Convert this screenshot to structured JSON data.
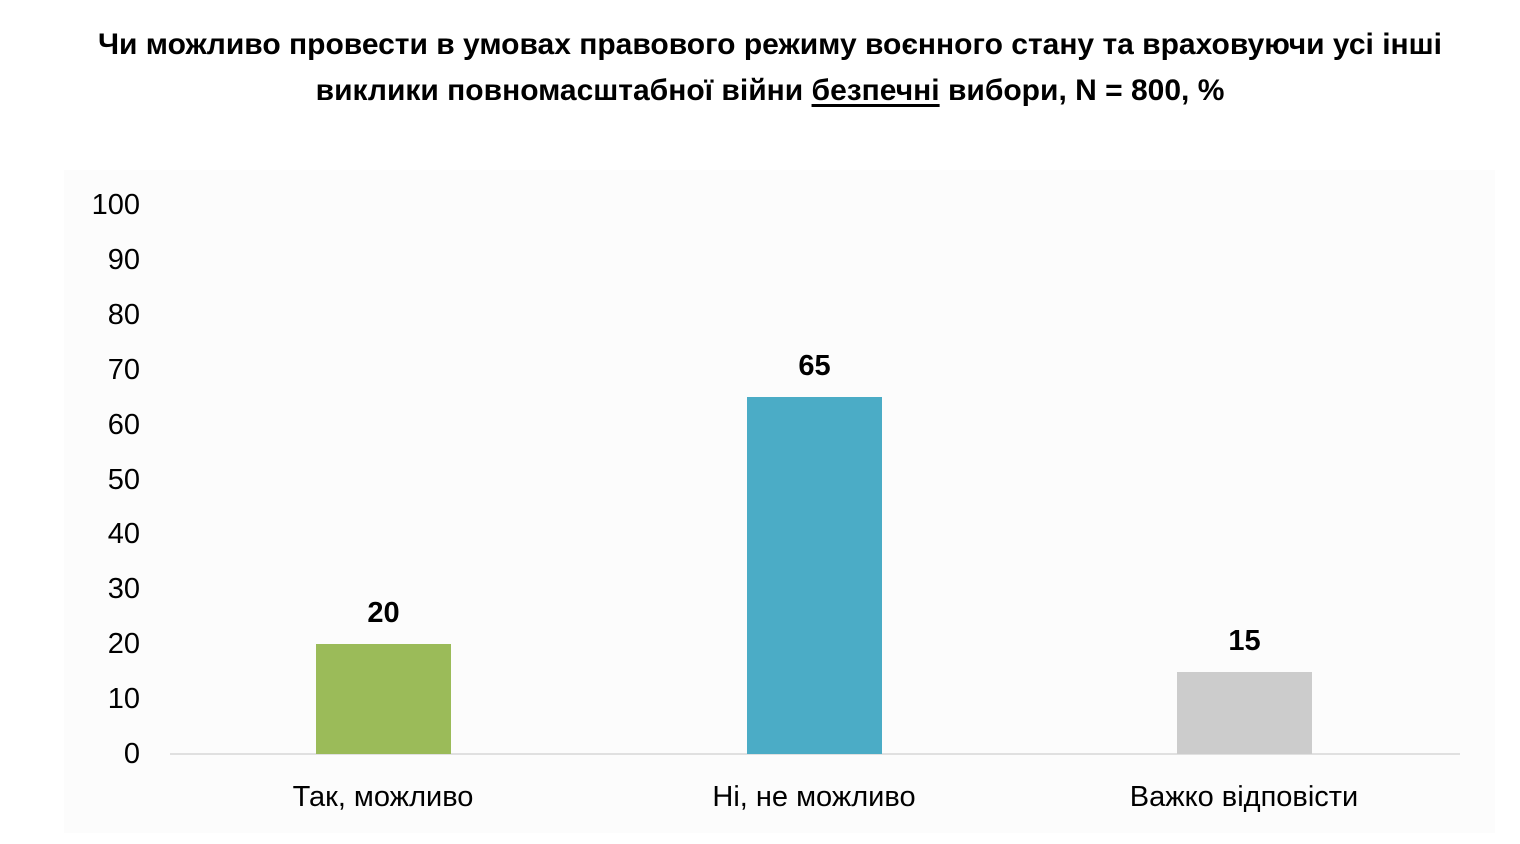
{
  "title": {
    "part1": "Чи можливо провести в умовах правового режиму воєнного стану та враховуючи усі інші виклики повномасштабної війни ",
    "underlined": "безпечні",
    "part2": " вибори, N = 800, %"
  },
  "y_ticks": [
    "100",
    "90",
    "80",
    "70",
    "60",
    "50",
    "40",
    "30",
    "20",
    "10",
    "0"
  ],
  "bars": [
    {
      "label": "Так, можливо",
      "value": 20,
      "value_label": "20",
      "color": "#9bbb59"
    },
    {
      "label": "Ні, не можливо",
      "value": 65,
      "value_label": "65",
      "color": "#4bacc6"
    },
    {
      "label": "Важко відповісти",
      "value": 15,
      "value_label": "15",
      "color": "#cccccc"
    }
  ],
  "chart_data": {
    "type": "bar",
    "title": "Чи можливо провести в умовах правового режиму воєнного стану та враховуючи усі інші виклики повномасштабної війни безпечні вибори, N = 800, %",
    "categories": [
      "Так, можливо",
      "Ні, не можливо",
      "Важко відповісти"
    ],
    "values": [
      20,
      65,
      15
    ],
    "colors": [
      "#9bbb59",
      "#4bacc6",
      "#cccccc"
    ],
    "xlabel": "",
    "ylabel": "",
    "ylim": [
      0,
      100
    ],
    "yticks": [
      0,
      10,
      20,
      30,
      40,
      50,
      60,
      70,
      80,
      90,
      100
    ],
    "grid": false,
    "legend": "none",
    "data_labels": true
  }
}
